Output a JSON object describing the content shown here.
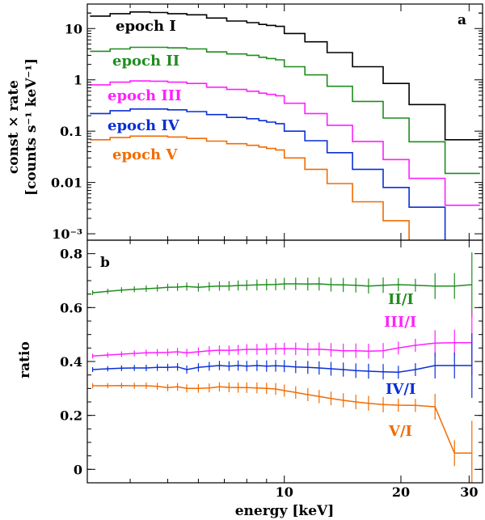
{
  "chart_data": [
    {
      "type": "line",
      "panel_label": "a",
      "xlabel": "",
      "ylabel_line1": "const × rate",
      "ylabel_line2": "[counts s⁻¹ keV⁻¹]",
      "xscale": "log",
      "yscale": "log",
      "xlim": [
        3.1,
        32.5
      ],
      "ylim": [
        0.00075,
        30
      ],
      "ytick_values": [
        10,
        1,
        0.1,
        0.01,
        0.001
      ],
      "ytick_labels": [
        "10",
        "1",
        "0.1",
        "0.01",
        "10⁻³"
      ],
      "bin_edges": [
        3.15,
        3.55,
        4.0,
        4.5,
        5.0,
        5.6,
        6.3,
        7.1,
        8.0,
        8.6,
        9.0,
        9.5,
        10.0,
        11.3,
        12.9,
        15.0,
        18.0,
        21.0,
        26.0,
        32.0
      ],
      "series": [
        {
          "name": "epoch I",
          "color": "#000000",
          "values": [
            17.5,
            19.5,
            21,
            20.5,
            19.5,
            18.5,
            16,
            14,
            13,
            12,
            11.5,
            11,
            8,
            5.5,
            3.4,
            1.8,
            0.85,
            0.33,
            0.068
          ]
        },
        {
          "name": "epoch II",
          "color": "#1f8c1f",
          "values": [
            3.6,
            4.0,
            4.3,
            4.3,
            4.2,
            4.0,
            3.5,
            3.2,
            3.0,
            2.75,
            2.6,
            2.45,
            1.8,
            1.25,
            0.75,
            0.38,
            0.18,
            0.062,
            0.015
          ]
        },
        {
          "name": "epoch III",
          "color": "#ff1fff",
          "values": [
            0.8,
            0.9,
            0.95,
            0.94,
            0.9,
            0.85,
            0.72,
            0.65,
            0.6,
            0.55,
            0.52,
            0.49,
            0.35,
            0.22,
            0.13,
            0.063,
            0.028,
            0.012,
            0.0036
          ]
        },
        {
          "name": "epoch IV",
          "color": "#0a2fd4",
          "values": [
            0.22,
            0.25,
            0.27,
            0.27,
            0.26,
            0.24,
            0.21,
            0.185,
            0.175,
            0.16,
            0.15,
            0.14,
            0.1,
            0.065,
            0.038,
            0.018,
            0.008,
            0.0033,
            0.0003
          ]
        },
        {
          "name": "epoch V",
          "color": "#f26b00",
          "values": [
            0.068,
            0.075,
            0.08,
            0.08,
            0.077,
            0.072,
            0.064,
            0.057,
            0.053,
            0.049,
            0.046,
            0.043,
            0.03,
            0.018,
            0.0095,
            0.0042,
            0.0018,
            0.00062,
            0.0002
          ]
        }
      ]
    },
    {
      "type": "line",
      "panel_label": "b",
      "xlabel": "energy [keV]",
      "ylabel": "ratio",
      "xscale": "log",
      "xlim": [
        3.1,
        32.5
      ],
      "ylim": [
        -0.05,
        0.85
      ],
      "xtick_values": [
        10,
        20,
        30
      ],
      "xtick_labels": [
        "10",
        "20",
        "30"
      ],
      "ytick_values": [
        0,
        0.2,
        0.4,
        0.6,
        0.8
      ],
      "ytick_labels": [
        "0",
        "0.2",
        "0.4",
        "0.6",
        "0.8"
      ],
      "x": [
        3.2,
        3.5,
        3.8,
        4.1,
        4.4,
        4.7,
        5.0,
        5.3,
        5.6,
        6.0,
        6.4,
        6.8,
        7.2,
        7.6,
        8.0,
        8.5,
        9.0,
        9.5,
        10.0,
        10.7,
        11.5,
        12.3,
        13.2,
        14.2,
        15.3,
        16.5,
        18.0,
        19.7,
        21.8,
        24.5,
        27.5,
        30.5
      ],
      "series": [
        {
          "name": "II/I",
          "color": "#1f8c1f",
          "values": [
            0.655,
            0.66,
            0.665,
            0.668,
            0.67,
            0.672,
            0.675,
            0.676,
            0.678,
            0.675,
            0.678,
            0.68,
            0.68,
            0.682,
            0.683,
            0.684,
            0.685,
            0.686,
            0.688,
            0.688,
            0.687,
            0.688,
            0.685,
            0.684,
            0.683,
            0.68,
            0.683,
            0.685,
            0.683,
            0.68,
            0.68,
            0.685
          ]
        },
        {
          "name": "III/I",
          "color": "#ff1fff",
          "values": [
            0.42,
            0.424,
            0.427,
            0.43,
            0.432,
            0.433,
            0.434,
            0.436,
            0.432,
            0.436,
            0.44,
            0.442,
            0.441,
            0.443,
            0.445,
            0.445,
            0.446,
            0.447,
            0.447,
            0.447,
            0.445,
            0.446,
            0.443,
            0.44,
            0.44,
            0.438,
            0.44,
            0.45,
            0.46,
            0.468,
            0.47,
            0.47
          ]
        },
        {
          "name": "IV/I",
          "color": "#0a2fd4",
          "values": [
            0.37,
            0.373,
            0.375,
            0.376,
            0.376,
            0.378,
            0.378,
            0.38,
            0.37,
            0.378,
            0.382,
            0.385,
            0.383,
            0.385,
            0.383,
            0.385,
            0.383,
            0.384,
            0.383,
            0.38,
            0.378,
            0.376,
            0.373,
            0.37,
            0.366,
            0.364,
            0.362,
            0.36,
            0.37,
            0.385,
            0.385,
            0.385
          ]
        },
        {
          "name": "V/I",
          "color": "#f26b00",
          "values": [
            0.31,
            0.31,
            0.311,
            0.31,
            0.31,
            0.308,
            0.303,
            0.306,
            0.3,
            0.3,
            0.302,
            0.306,
            0.304,
            0.303,
            0.303,
            0.302,
            0.3,
            0.298,
            0.292,
            0.285,
            0.277,
            0.27,
            0.263,
            0.256,
            0.25,
            0.245,
            0.24,
            0.238,
            0.237,
            0.232,
            0.06,
            0.06
          ]
        }
      ]
    }
  ]
}
